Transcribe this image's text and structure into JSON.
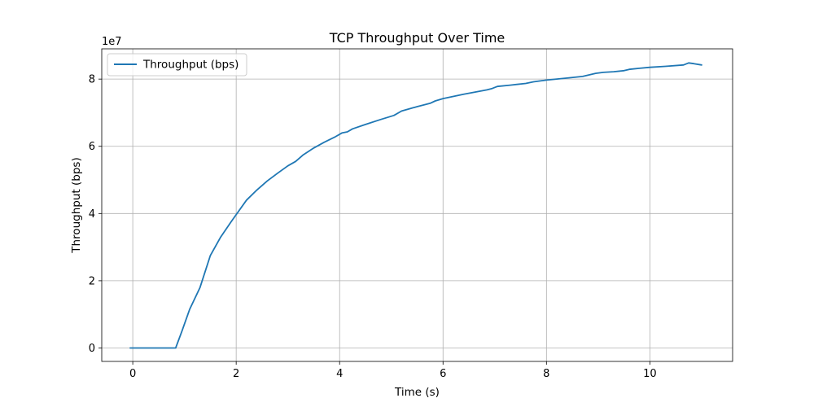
{
  "chart_data": {
    "type": "line",
    "title": "TCP Throughput Over Time",
    "xlabel": "Time (s)",
    "ylabel": "Throughput (bps)",
    "y_offset_text": "1e7",
    "y_scale_factor": 10000000,
    "xlim": [
      -0.6,
      11.6
    ],
    "ylim": [
      -0.4,
      8.9
    ],
    "xticks": [
      0,
      2,
      4,
      6,
      8,
      10
    ],
    "xtick_labels": [
      "0",
      "2",
      "4",
      "6",
      "8",
      "10"
    ],
    "yticks": [
      0,
      2,
      4,
      6,
      8
    ],
    "ytick_labels": [
      "0",
      "2",
      "4",
      "6",
      "8"
    ],
    "grid": true,
    "legend_position": "upper-left",
    "series": [
      {
        "name": "Throughput (bps)",
        "color": "#1f77b4",
        "x": [
          -0.05,
          0.2,
          0.5,
          0.83,
          0.95,
          1.1,
          1.3,
          1.5,
          1.7,
          1.9,
          2.0,
          2.2,
          2.4,
          2.6,
          2.8,
          3.0,
          3.15,
          3.3,
          3.5,
          3.7,
          3.9,
          4.05,
          4.15,
          4.25,
          4.5,
          4.8,
          5.05,
          5.2,
          5.5,
          5.75,
          5.85,
          6.0,
          6.4,
          6.85,
          6.95,
          7.05,
          7.3,
          7.6,
          7.75,
          8.0,
          8.4,
          8.7,
          8.95,
          9.1,
          9.3,
          9.5,
          9.6,
          9.8,
          10.0,
          10.3,
          10.65,
          10.75,
          10.85,
          11.0
        ],
        "values": [
          0.0,
          0.0,
          0.0,
          0.0,
          0.5,
          1.15,
          1.8,
          2.75,
          3.3,
          3.75,
          3.97,
          4.4,
          4.7,
          4.97,
          5.2,
          5.42,
          5.55,
          5.75,
          5.95,
          6.12,
          6.27,
          6.4,
          6.43,
          6.52,
          6.65,
          6.8,
          6.92,
          7.05,
          7.18,
          7.28,
          7.35,
          7.42,
          7.55,
          7.68,
          7.72,
          7.78,
          7.82,
          7.87,
          7.92,
          7.97,
          8.03,
          8.08,
          8.17,
          8.2,
          8.22,
          8.25,
          8.29,
          8.32,
          8.35,
          8.38,
          8.42,
          8.48,
          8.46,
          8.42
        ]
      }
    ]
  }
}
